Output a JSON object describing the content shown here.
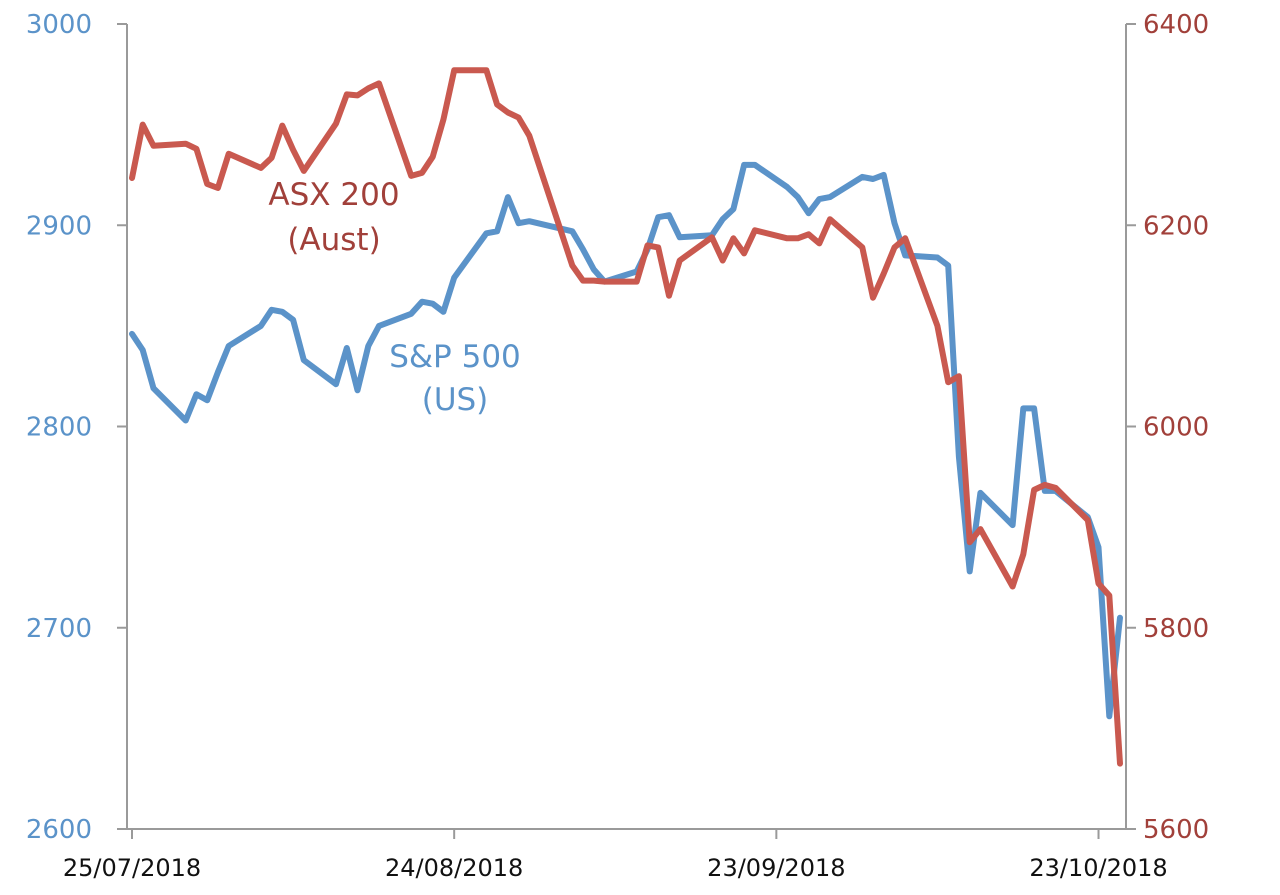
{
  "chart_data": {
    "type": "line",
    "title": "",
    "x": [
      "25/07/2018",
      "26/07/2018",
      "27/07/2018",
      "30/07/2018",
      "31/07/2018",
      "01/08/2018",
      "02/08/2018",
      "03/08/2018",
      "06/08/2018",
      "07/08/2018",
      "08/08/2018",
      "09/08/2018",
      "10/08/2018",
      "13/08/2018",
      "14/08/2018",
      "15/08/2018",
      "16/08/2018",
      "17/08/2018",
      "20/08/2018",
      "21/08/2018",
      "22/08/2018",
      "23/08/2018",
      "24/08/2018",
      "27/08/2018",
      "28/08/2018",
      "29/08/2018",
      "30/08/2018",
      "31/08/2018",
      "04/09/2018",
      "05/09/2018",
      "06/09/2018",
      "07/09/2018",
      "10/09/2018",
      "11/09/2018",
      "12/09/2018",
      "13/09/2018",
      "14/09/2018",
      "17/09/2018",
      "18/09/2018",
      "19/09/2018",
      "20/09/2018",
      "21/09/2018",
      "24/09/2018",
      "25/09/2018",
      "26/09/2018",
      "27/09/2018",
      "28/09/2018",
      "01/10/2018",
      "02/10/2018",
      "03/10/2018",
      "04/10/2018",
      "05/10/2018",
      "08/10/2018",
      "09/10/2018",
      "10/10/2018",
      "11/10/2018",
      "12/10/2018",
      "15/10/2018",
      "16/10/2018",
      "17/10/2018",
      "18/10/2018",
      "19/10/2018",
      "22/10/2018",
      "23/10/2018",
      "24/10/2018",
      "25/10/2018"
    ],
    "xticks": [
      "25/07/2018",
      "24/08/2018",
      "23/09/2018",
      "23/10/2018"
    ],
    "x_range_days": [
      0,
      92
    ],
    "series": [
      {
        "name": "S&P 500",
        "label_line1": "S&P 500",
        "label_line2": "(US)",
        "axis": "left",
        "color": "#5B93C9",
        "day": [
          0,
          1,
          2,
          5,
          6,
          7,
          8,
          9,
          12,
          13,
          14,
          15,
          16,
          19,
          20,
          21,
          22,
          23,
          26,
          27,
          28,
          29,
          30,
          33,
          34,
          35,
          36,
          37,
          41,
          42,
          43,
          44,
          47,
          48,
          49,
          50,
          51,
          54,
          55,
          56,
          57,
          58,
          61,
          62,
          63,
          64,
          65,
          68,
          69,
          70,
          71,
          72,
          75,
          76,
          77,
          78,
          79,
          82,
          83,
          84,
          85,
          86,
          89,
          90,
          91,
          92
        ],
        "values": [
          2846,
          2838,
          2819,
          2803,
          2816,
          2813,
          2827,
          2840,
          2850,
          2858,
          2857,
          2853,
          2833,
          2821,
          2839,
          2818,
          2840,
          2850,
          2856,
          2862,
          2861,
          2857,
          2874,
          2896,
          2897,
          2914,
          2901,
          2902,
          2897,
          2888,
          2878,
          2872,
          2877,
          2888,
          2904,
          2905,
          2894,
          2895,
          2903,
          2908,
          2930,
          2930,
          2919,
          2914,
          2906,
          2913,
          2914,
          2924,
          2923,
          2925,
          2901,
          2885,
          2884,
          2880,
          2785,
          2728,
          2767,
          2751,
          2809,
          2809,
          2768,
          2768,
          2755,
          2740,
          2656,
          2705
        ]
      },
      {
        "name": "ASX 200",
        "label_line1": "ASX 200",
        "label_line2": "(Aust)",
        "axis": "right",
        "color": "#C9594F",
        "day": [
          0,
          1,
          2,
          5,
          6,
          7,
          8,
          9,
          12,
          13,
          14,
          15,
          16,
          19,
          20,
          21,
          22,
          23,
          26,
          27,
          28,
          29,
          30,
          33,
          34,
          35,
          36,
          37,
          41,
          42,
          43,
          44,
          47,
          48,
          49,
          50,
          51,
          54,
          55,
          56,
          57,
          58,
          61,
          62,
          63,
          64,
          65,
          68,
          69,
          70,
          71,
          72,
          75,
          76,
          77,
          78,
          79,
          82,
          83,
          84,
          85,
          86,
          89,
          90,
          91,
          92
        ],
        "values": [
          6247,
          6300,
          6279,
          6281,
          6276,
          6241,
          6237,
          6271,
          6257,
          6267,
          6299,
          6275,
          6254,
          6301,
          6330,
          6329,
          6336,
          6341,
          6249,
          6252,
          6268,
          6305,
          6354,
          6354,
          6320,
          6312,
          6307,
          6289,
          6160,
          6145,
          6145,
          6144,
          6144,
          6180,
          6178,
          6130,
          6165,
          6188,
          6165,
          6187,
          6172,
          6195,
          6187,
          6187,
          6191,
          6182,
          6206,
          6178,
          6128,
          6152,
          6178,
          6187,
          6100,
          6044,
          6050,
          5885,
          5898,
          5841,
          5873,
          5937,
          5942,
          5939,
          5907,
          5844,
          5832,
          5665
        ]
      }
    ],
    "y_left": {
      "label": "",
      "ylim": [
        2600,
        3000
      ],
      "ticks": [
        "2600",
        "2700",
        "2800",
        "2900",
        "3000"
      ],
      "color": "#5B93C9"
    },
    "y_right": {
      "label": "",
      "ylim": [
        5600,
        6400
      ],
      "ticks": [
        "5600",
        "5800",
        "6000",
        "6200",
        "6400"
      ],
      "color": "#A1403A"
    },
    "grid": false,
    "legend": "inline labels"
  }
}
